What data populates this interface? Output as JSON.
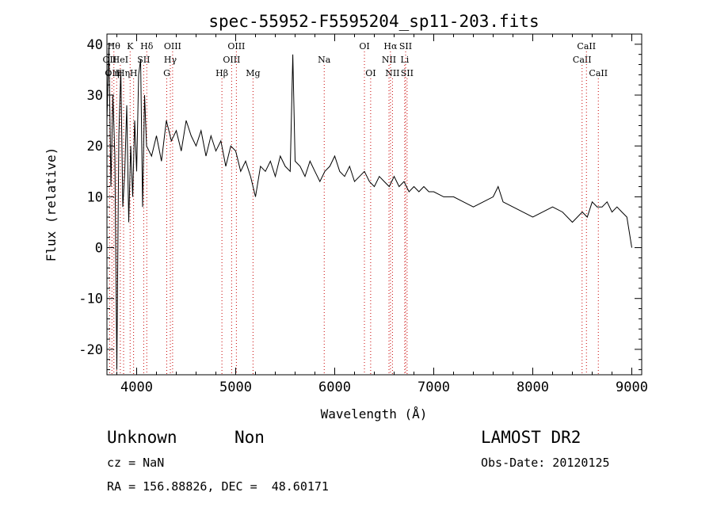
{
  "chart_data": {
    "type": "line",
    "title": "spec-55952-F5595204_sp11-203.fits",
    "xlabel": "Wavelength (Å)",
    "ylabel": "Flux (relative)",
    "xlim": [
      3700,
      9100
    ],
    "ylim": [
      -25,
      42
    ],
    "xticks": [
      4000,
      5000,
      6000,
      7000,
      8000,
      9000
    ],
    "yticks": [
      -20,
      -10,
      0,
      10,
      20,
      30,
      40
    ],
    "grid": false,
    "line_color": "#000000",
    "marker_color": "#c80000",
    "series": [
      {
        "x": [
          3700,
          3720,
          3740,
          3760,
          3780,
          3800,
          3820,
          3840,
          3860,
          3880,
          3900,
          3920,
          3940,
          3960,
          3980,
          4000,
          4020,
          4040,
          4060,
          4080,
          4100,
          4150,
          4200,
          4250,
          4300,
          4350,
          4400,
          4450,
          4500,
          4550,
          4600,
          4650,
          4700,
          4750,
          4800,
          4850,
          4900,
          4950,
          5000,
          5050,
          5100,
          5150,
          5200,
          5250,
          5300,
          5350,
          5400,
          5450,
          5500,
          5550,
          5577,
          5600,
          5650,
          5700,
          5750,
          5800,
          5850,
          5900,
          5950,
          6000,
          6050,
          6100,
          6150,
          6200,
          6250,
          6300,
          6350,
          6400,
          6450,
          6500,
          6550,
          6600,
          6650,
          6700,
          6750,
          6800,
          6850,
          6900,
          6950,
          7000,
          7100,
          7200,
          7300,
          7400,
          7500,
          7600,
          7650,
          7700,
          7800,
          7900,
          8000,
          8100,
          8200,
          8300,
          8400,
          8450,
          8500,
          8550,
          8600,
          8650,
          8700,
          8750,
          8800,
          8850,
          8900,
          8950,
          9000
        ],
        "y": [
          25,
          40,
          12,
          30,
          18,
          -24,
          22,
          35,
          8,
          15,
          28,
          5,
          20,
          10,
          25,
          15,
          34,
          37,
          8,
          30,
          20,
          18,
          22,
          17,
          25,
          21,
          23,
          19,
          25,
          22,
          20,
          23,
          18,
          22,
          19,
          21,
          16,
          20,
          19,
          15,
          17,
          14,
          10,
          16,
          15,
          17,
          14,
          18,
          16,
          15,
          38,
          17,
          16,
          14,
          17,
          15,
          13,
          15,
          16,
          18,
          15,
          14,
          16,
          13,
          14,
          15,
          13,
          12,
          14,
          13,
          12,
          14,
          12,
          13,
          11,
          12,
          11,
          12,
          11,
          11,
          10,
          10,
          9,
          8,
          9,
          10,
          12,
          9,
          8,
          7,
          6,
          7,
          8,
          7,
          5,
          6,
          7,
          6,
          9,
          8,
          8,
          9,
          7,
          8,
          7,
          6,
          0
        ]
      }
    ],
    "line_markers": [
      {
        "x": 3727,
        "label": "OII",
        "row": 2
      },
      {
        "x": 3750,
        "label": "OII",
        "row": 3
      },
      {
        "x": 3770,
        "label": "Hθ",
        "row": 1
      },
      {
        "x": 3798,
        "label": "η",
        "row": 3
      },
      {
        "x": 3835,
        "label": "HeI",
        "row": 2
      },
      {
        "x": 3868,
        "label": "Hη",
        "row": 3
      },
      {
        "x": 3934,
        "label": "K",
        "row": 1
      },
      {
        "x": 3969,
        "label": "H",
        "row": 3
      },
      {
        "x": 4071,
        "label": "SII",
        "row": 2
      },
      {
        "x": 4102,
        "label": "Hδ",
        "row": 1
      },
      {
        "x": 4304,
        "label": "G",
        "row": 3
      },
      {
        "x": 4340,
        "label": "Hγ",
        "row": 2
      },
      {
        "x": 4363,
        "label": "OIII",
        "row": 1
      },
      {
        "x": 4861,
        "label": "Hβ",
        "row": 3
      },
      {
        "x": 4959,
        "label": "OIII",
        "row": 2
      },
      {
        "x": 5007,
        "label": "OIII",
        "row": 1
      },
      {
        "x": 5175,
        "label": "Mg",
        "row": 3
      },
      {
        "x": 5894,
        "label": "Na",
        "row": 2
      },
      {
        "x": 6300,
        "label": "OI",
        "row": 1
      },
      {
        "x": 6363,
        "label": "OI",
        "row": 3
      },
      {
        "x": 6548,
        "label": "NII",
        "row": 2
      },
      {
        "x": 6563,
        "label": "Hα",
        "row": 1
      },
      {
        "x": 6583,
        "label": "NII",
        "row": 3
      },
      {
        "x": 6707,
        "label": "Li",
        "row": 2
      },
      {
        "x": 6716,
        "label": "SII",
        "row": 1
      },
      {
        "x": 6731,
        "label": "SII",
        "row": 3
      },
      {
        "x": 8498,
        "label": "CaII",
        "row": 2
      },
      {
        "x": 8542,
        "label": "CaII",
        "row": 1
      },
      {
        "x": 8662,
        "label": "CaII",
        "row": 3
      }
    ]
  },
  "info": {
    "object_class": "Unknown",
    "subclass": "Non",
    "cz": "cz = NaN",
    "coords": "RA = 156.88826, DEC =  48.60171",
    "survey": "LAMOST DR2",
    "obs_date": "Obs-Date: 20120125"
  }
}
